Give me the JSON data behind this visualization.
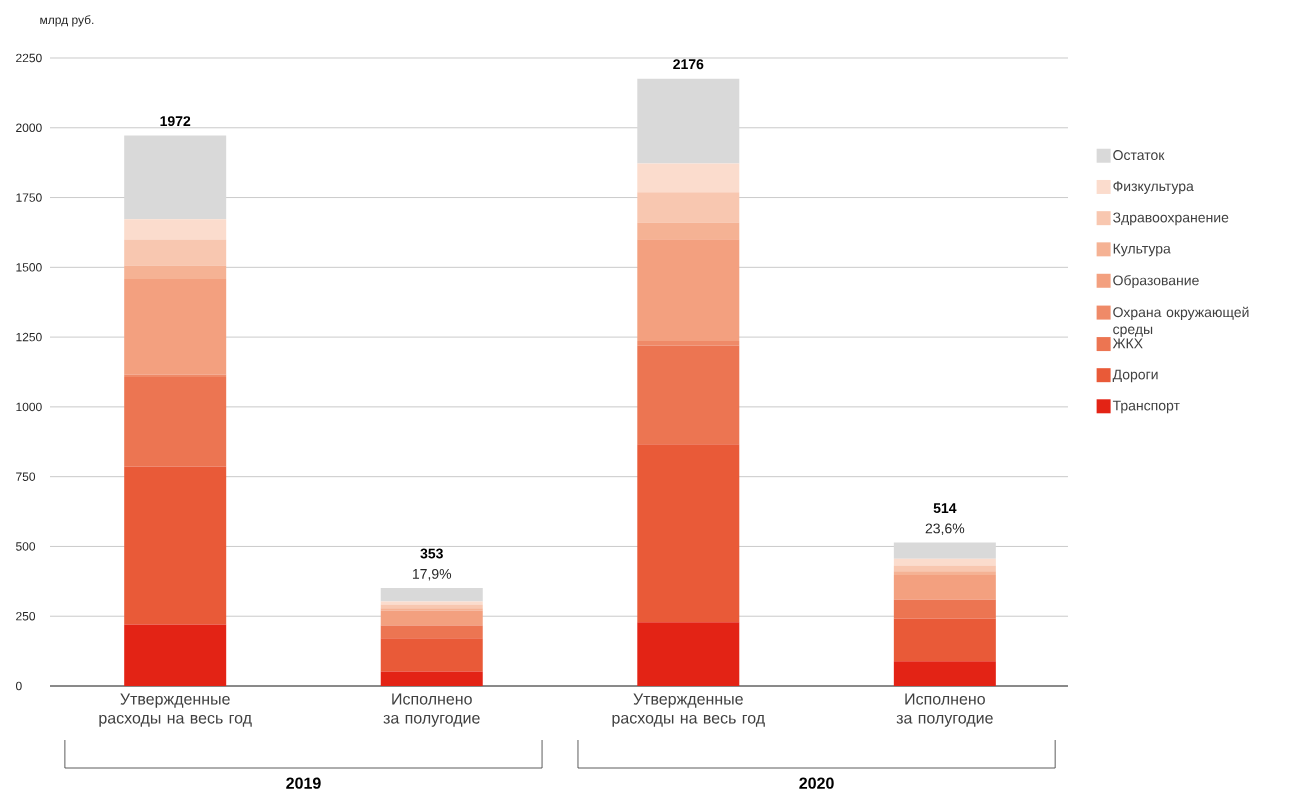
{
  "chart_data": {
    "type": "bar",
    "stacked": true,
    "ylabel": "млрд руб.",
    "categories": [
      "Утвержденные расходы на весь год",
      "Исполнено за полугодие",
      "Утвержденные расходы на весь год",
      "Исполнено за полугодие"
    ],
    "series": [
      {
        "name": "Транспорт",
        "color": "#e32315",
        "values": [
          220,
          52,
          228,
          89
        ]
      },
      {
        "name": "Дороги",
        "color": "#e95a38",
        "values": [
          566,
          119,
          638,
          153
        ]
      },
      {
        "name": "ЖКХ",
        "color": "#ec7552",
        "values": [
          321,
          46,
          354,
          67
        ]
      },
      {
        "name": "Охрана окружающей среды",
        "color": "#ef8a68",
        "values": [
          9,
          null,
          16,
          2
        ]
      },
      {
        "name": "Образование",
        "color": "#f3a07f",
        "values": [
          342,
          53,
          365,
          87
        ]
      },
      {
        "name": "Культура",
        "color": "#f5b294",
        "values": [
          49,
          9,
          60,
          13
        ]
      },
      {
        "name": "Здравоохранение",
        "color": "#f8c7b0",
        "values": [
          93,
          13,
          108,
          21
        ]
      },
      {
        "name": "Физкультура",
        "color": "#fbdccd",
        "values": [
          72,
          11,
          103,
          24
        ]
      },
      {
        "name": "Остаток",
        "color": "#d9d9d9",
        "values": [
          300,
          48,
          304,
          58
        ]
      }
    ],
    "totals": [
      "1972",
      "353",
      "2176",
      "514"
    ],
    "annotations": [
      "17,9%",
      "23,6%",
      "2019",
      "2020"
    ],
    "ylim": [
      0,
      2250
    ],
    "yticks": [
      0,
      250,
      500,
      750,
      1000,
      1250,
      1500,
      1750,
      2000,
      2250
    ],
    "grid": "y",
    "legend": "right"
  }
}
